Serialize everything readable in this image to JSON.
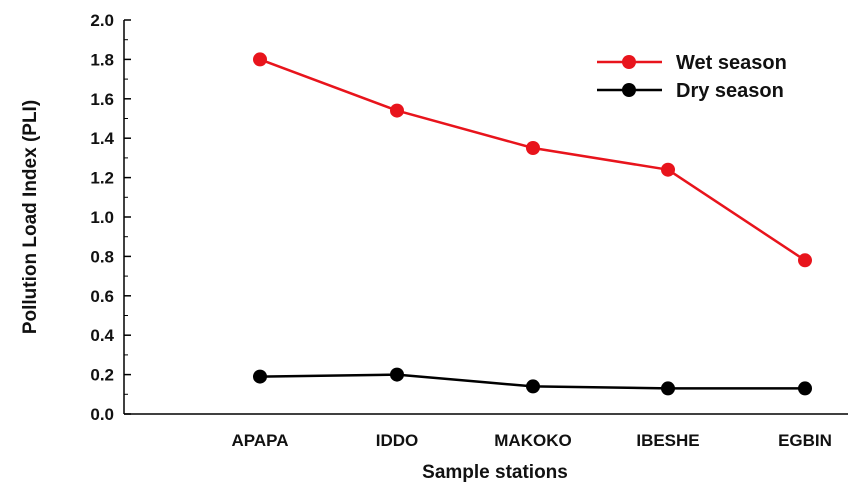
{
  "chart_data": {
    "type": "line",
    "title": "",
    "xlabel": "Sample stations",
    "ylabel": "Pollution Load Index (PLI)",
    "categories": [
      "APAPA",
      "IDDO",
      "MAKOKO",
      "IBESHE",
      "EGBIN"
    ],
    "ylim": [
      0.0,
      2.0
    ],
    "yticks": [
      "0.0",
      "0.2",
      "0.4",
      "0.6",
      "0.8",
      "1.0",
      "1.2",
      "1.4",
      "1.6",
      "1.8",
      "2.0"
    ],
    "grid": false,
    "legend_position": "top-right",
    "series": [
      {
        "name": "Wet season",
        "color": "#e8141c",
        "values": [
          1.8,
          1.54,
          1.35,
          1.24,
          0.78
        ]
      },
      {
        "name": "Dry season",
        "color": "#000000",
        "values": [
          0.19,
          0.2,
          0.14,
          0.13,
          0.13
        ]
      }
    ]
  }
}
